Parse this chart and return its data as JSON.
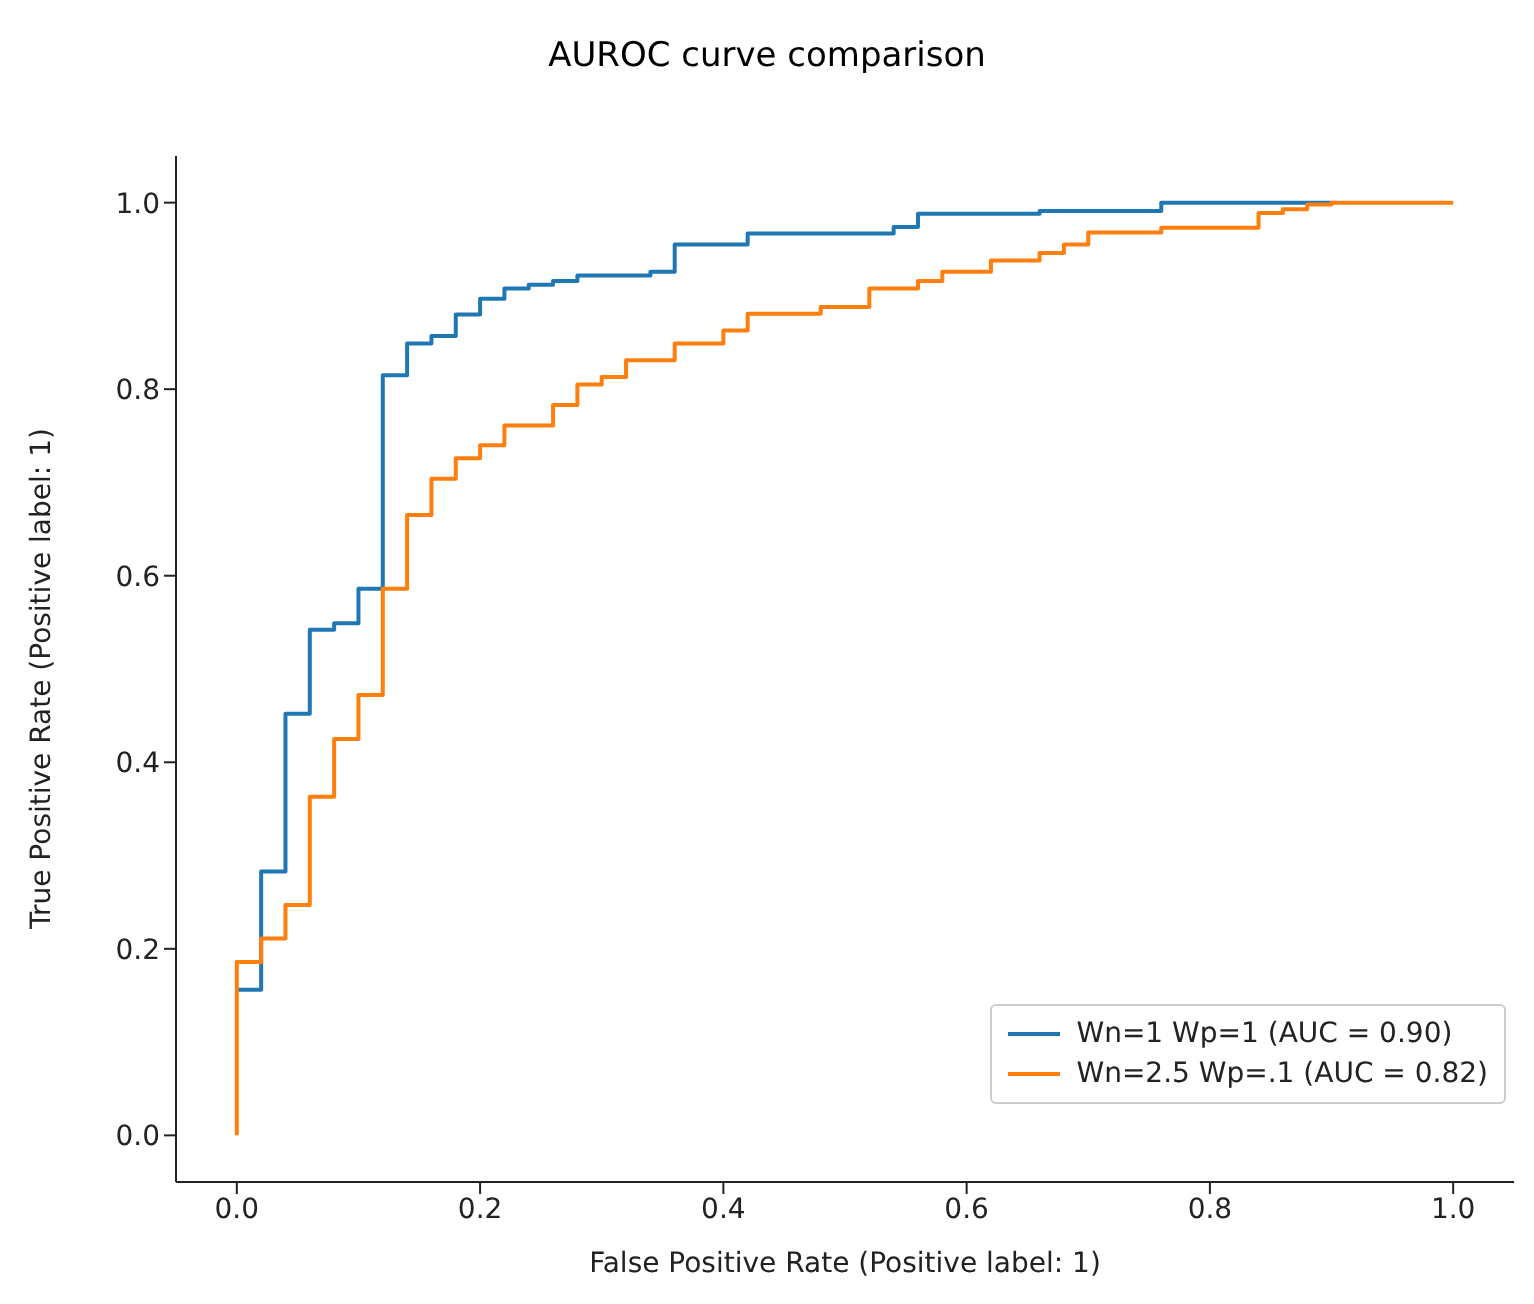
{
  "chart_data": {
    "type": "line",
    "title": "AUROC curve comparison",
    "xlabel": "False Positive Rate (Positive label: 1)",
    "ylabel": "True Positive Rate (Positive label: 1)",
    "xlim": [
      -0.05,
      1.05
    ],
    "ylim": [
      -0.05,
      1.05
    ],
    "xticks": [
      {
        "value": 0,
        "label": "0.0"
      },
      {
        "value": 0.2,
        "label": "0.2"
      },
      {
        "value": 0.4,
        "label": "0.4"
      },
      {
        "value": 0.6,
        "label": "0.6"
      },
      {
        "value": 0.8,
        "label": "0.8"
      },
      {
        "value": 1,
        "label": "1.0"
      }
    ],
    "yticks": [
      {
        "value": 0,
        "label": "0.0"
      },
      {
        "value": 0.2,
        "label": "0.2"
      },
      {
        "value": 0.4,
        "label": "0.4"
      },
      {
        "value": 0.6,
        "label": "0.6"
      },
      {
        "value": 0.8,
        "label": "0.8"
      },
      {
        "value": 1,
        "label": "1.0"
      }
    ],
    "legend": "bottom right",
    "grid": false,
    "marker": "none",
    "line_style": "solid",
    "series": [
      {
        "name": "Wn=1 Wp=1 (AUC = 0.90)",
        "color": "#1f77b4",
        "x": [
          0,
          0.02,
          0.02,
          0.04,
          0.04,
          0.06,
          0.06,
          0.08,
          0.08,
          0.1,
          0.1,
          0.12,
          0.12,
          0.14,
          0.14,
          0.16,
          0.16,
          0.18,
          0.18,
          0.2,
          0.2,
          0.22,
          0.22,
          0.24,
          0.24,
          0.26,
          0.26,
          0.28,
          0.28,
          0.34,
          0.34,
          0.36,
          0.36,
          0.42,
          0.42,
          0.54,
          0.54,
          0.56,
          0.56,
          0.66,
          0.66,
          0.76,
          0.76,
          0.9
        ],
        "values": [
          0.156,
          0.156,
          0.283,
          0.283,
          0.452,
          0.452,
          0.542,
          0.542,
          0.549,
          0.549,
          0.586,
          0.586,
          0.815,
          0.815,
          0.849,
          0.849,
          0.857,
          0.857,
          0.88,
          0.88,
          0.897,
          0.897,
          0.908,
          0.908,
          0.912,
          0.912,
          0.916,
          0.916,
          0.922,
          0.922,
          0.926,
          0.926,
          0.955,
          0.955,
          0.967,
          0.967,
          0.974,
          0.974,
          0.988,
          0.988,
          0.991,
          0.991,
          1,
          1
        ]
      },
      {
        "name": "Wn=2.5 Wp=.1 (AUC = 0.82)",
        "color": "#ff7f0e",
        "x": [
          0,
          0,
          0.02,
          0.02,
          0.04,
          0.04,
          0.06,
          0.06,
          0.08,
          0.08,
          0.1,
          0.1,
          0.12,
          0.12,
          0.14,
          0.14,
          0.16,
          0.16,
          0.18,
          0.18,
          0.2,
          0.2,
          0.22,
          0.22,
          0.26,
          0.26,
          0.28,
          0.28,
          0.3,
          0.3,
          0.32,
          0.32,
          0.36,
          0.36,
          0.4,
          0.4,
          0.42,
          0.42,
          0.48,
          0.48,
          0.52,
          0.52,
          0.56,
          0.56,
          0.58,
          0.58,
          0.62,
          0.62,
          0.66,
          0.66,
          0.68,
          0.68,
          0.7,
          0.7,
          0.76,
          0.76,
          0.84,
          0.84,
          0.86,
          0.86,
          0.88,
          0.88,
          0.9,
          0.9,
          1
        ],
        "values": [
          0,
          0.186,
          0.186,
          0.211,
          0.211,
          0.247,
          0.247,
          0.363,
          0.363,
          0.425,
          0.425,
          0.472,
          0.472,
          0.586,
          0.586,
          0.665,
          0.665,
          0.704,
          0.704,
          0.726,
          0.726,
          0.74,
          0.74,
          0.761,
          0.761,
          0.783,
          0.783,
          0.805,
          0.805,
          0.813,
          0.813,
          0.831,
          0.831,
          0.849,
          0.849,
          0.863,
          0.863,
          0.881,
          0.881,
          0.888,
          0.888,
          0.908,
          0.908,
          0.916,
          0.916,
          0.926,
          0.926,
          0.938,
          0.938,
          0.946,
          0.946,
          0.955,
          0.955,
          0.968,
          0.968,
          0.973,
          0.973,
          0.989,
          0.989,
          0.993,
          0.993,
          0.998,
          0.998,
          1,
          1
        ]
      }
    ]
  }
}
